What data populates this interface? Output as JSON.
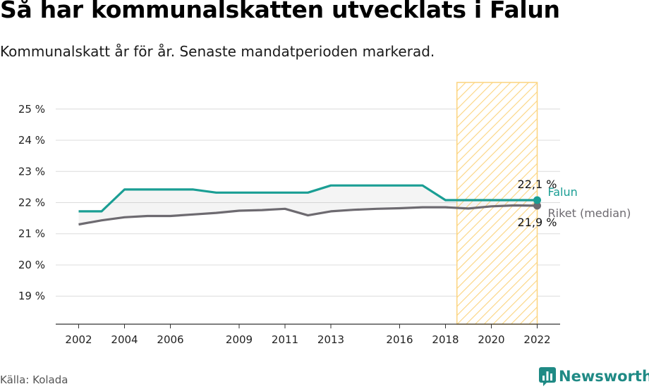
{
  "title": "Så har kommunalskatten utvecklats i Falun",
  "subtitle": "Kommunalskatt år för år. Senaste mandatperioden markerad.",
  "source": "Källa: Kolada",
  "brand": {
    "name": "Newsworthy",
    "color": "#1f8a85"
  },
  "chart_data": {
    "type": "line",
    "x_ticks": [
      2002,
      2004,
      2006,
      2009,
      2011,
      2013,
      2016,
      2018,
      2020,
      2022
    ],
    "y_ticks": [
      19,
      20,
      21,
      22,
      23,
      24,
      25
    ],
    "y_tick_labels": [
      "19 %",
      "20 %",
      "21 %",
      "22 %",
      "23 %",
      "24 %",
      "25 %"
    ],
    "xlim": [
      2001,
      2023
    ],
    "ylim": [
      18.1,
      25.9
    ],
    "grid": true,
    "highlight_period": [
      2018.5,
      2022
    ],
    "highlight_color": "#fcd47f",
    "series": [
      {
        "name": "Falun",
        "color": "#1a9e94",
        "end_label": "22,1 %",
        "x": [
          2002,
          2003,
          2004,
          2005,
          2006,
          2007,
          2008,
          2009,
          2010,
          2011,
          2012,
          2013,
          2014,
          2015,
          2016,
          2017,
          2018,
          2019,
          2020,
          2021,
          2022
        ],
        "y": [
          21.72,
          21.72,
          22.42,
          22.42,
          22.42,
          22.42,
          22.32,
          22.32,
          22.32,
          22.32,
          22.32,
          22.55,
          22.55,
          22.55,
          22.55,
          22.55,
          22.08,
          22.08,
          22.08,
          22.08,
          22.08
        ]
      },
      {
        "name": "Riket (median)",
        "color": "#6d6a70",
        "end_label": "21,9 %",
        "x": [
          2002,
          2003,
          2004,
          2005,
          2006,
          2007,
          2008,
          2009,
          2010,
          2011,
          2012,
          2013,
          2014,
          2015,
          2016,
          2017,
          2018,
          2019,
          2020,
          2021,
          2022
        ],
        "y": [
          21.3,
          21.43,
          21.53,
          21.57,
          21.57,
          21.62,
          21.67,
          21.74,
          21.76,
          21.8,
          21.59,
          21.72,
          21.77,
          21.8,
          21.82,
          21.85,
          21.85,
          21.81,
          21.88,
          21.91,
          21.9
        ]
      }
    ]
  }
}
